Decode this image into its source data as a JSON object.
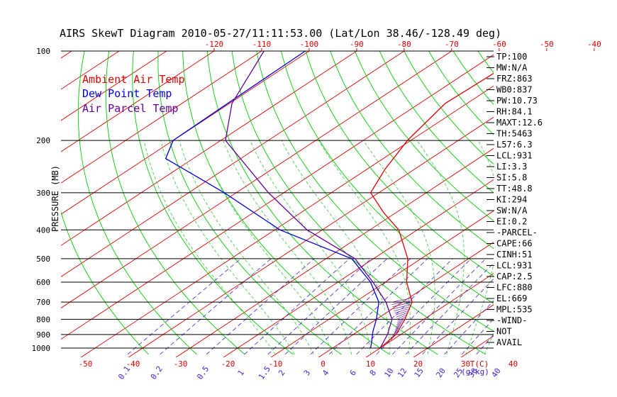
{
  "chart_data": {
    "type": "line",
    "title": "AIRS SkewT Diagram 2010-05-27/11:11:53.00 (Lat/Lon 38.46/-128.49 deg)",
    "ylabel": "PRESSURE (MB)",
    "xlabel_units": "T(C)",
    "mixing_ratio_units": "(g/kg)",
    "y_scale": "log",
    "ylim": [
      1050,
      100
    ],
    "pressure_ticks": [
      100,
      200,
      300,
      400,
      500,
      600,
      700,
      800,
      900,
      1000
    ],
    "top_temp_ticks": [
      -120,
      -110,
      -100,
      -90,
      -80,
      -70,
      -60,
      -50,
      -40
    ],
    "bottom_temp_ticks": [
      -50,
      -40,
      -30,
      -20,
      -10,
      0,
      10,
      20,
      30,
      40
    ],
    "mixing_ratio_ticks": [
      "0.1",
      "0.2",
      "0.5",
      "1",
      "1.5",
      "2",
      "3",
      "4",
      "6",
      "8",
      "10",
      "12",
      "15",
      "20",
      "25",
      "30",
      "40"
    ],
    "grid": true,
    "legend_position": "top-left",
    "colors": {
      "ambient": "#dd0000",
      "dewpoint": "#0000dd",
      "parcel": "#660099",
      "isotherm": "#dd0000",
      "dry_adiabat": "#00cc00",
      "moist_adiabat": "#33cc33",
      "mixing_ratio": "#4422cc",
      "isobar": "#000000"
    },
    "series": [
      {
        "name": "Ambient Air Temp",
        "points": [
          {
            "p": 100,
            "t": -53.6
          },
          {
            "p": 150,
            "t": -54.6
          },
          {
            "p": 200,
            "t": -50.7
          },
          {
            "p": 250,
            "t": -46.2
          },
          {
            "p": 300,
            "t": -41.7
          },
          {
            "p": 350,
            "t": -32.6
          },
          {
            "p": 400,
            "t": -23.9
          },
          {
            "p": 500,
            "t": -12.8
          },
          {
            "p": 600,
            "t": -5.5
          },
          {
            "p": 700,
            "t": 2.0
          },
          {
            "p": 800,
            "t": 6.0
          },
          {
            "p": 900,
            "t": 9.0
          },
          {
            "p": 1000,
            "t": 10.0
          }
        ]
      },
      {
        "name": "Dew Point Temp",
        "points": [
          {
            "p": 100,
            "t": -100.8
          },
          {
            "p": 150,
            "t": -100.4
          },
          {
            "p": 200,
            "t": -100.0
          },
          {
            "p": 230,
            "t": -95.8
          },
          {
            "p": 300,
            "t": -72.5
          },
          {
            "p": 400,
            "t": -48.9
          },
          {
            "p": 500,
            "t": -24.6
          },
          {
            "p": 600,
            "t": -13.1
          },
          {
            "p": 700,
            "t": -5.0
          },
          {
            "p": 800,
            "t": 0.0
          },
          {
            "p": 880,
            "t": 3.2
          },
          {
            "p": 960,
            "t": 6.5
          },
          {
            "p": 1000,
            "t": 8.0
          }
        ]
      },
      {
        "name": "Air Parcel Temp",
        "points": [
          {
            "p": 100,
            "t": -109.5
          },
          {
            "p": 150,
            "t": -99.5
          },
          {
            "p": 200,
            "t": -89.0
          },
          {
            "p": 300,
            "t": -63.2
          },
          {
            "p": 400,
            "t": -43.2
          },
          {
            "p": 500,
            "t": -23.9
          },
          {
            "p": 600,
            "t": -12.6
          },
          {
            "p": 700,
            "t": -3.5
          },
          {
            "p": 800,
            "t": 3.3
          },
          {
            "p": 900,
            "t": 7.2
          },
          {
            "p": 1000,
            "t": 10.0
          }
        ]
      }
    ]
  },
  "indices": [
    "TP:100",
    "MW:N/A",
    "FRZ:863",
    "WB0:837",
    "PW:10.73",
    "RH:84.1",
    "MAXT:12.6",
    "TH:5463",
    "L57:6.3",
    "LCL:931",
    "LI:3.3",
    "SI:5.8",
    "TT:48.8",
    "KI:294",
    "SW:N/A",
    "EI:0.2",
    "-PARCEL-",
    "CAPE:66",
    "CINH:51",
    "LCL:931",
    "CAP:2.5",
    "LFC:880",
    "EL:669",
    "MPL:535",
    "-WIND-",
    "NOT",
    "AVAIL"
  ]
}
